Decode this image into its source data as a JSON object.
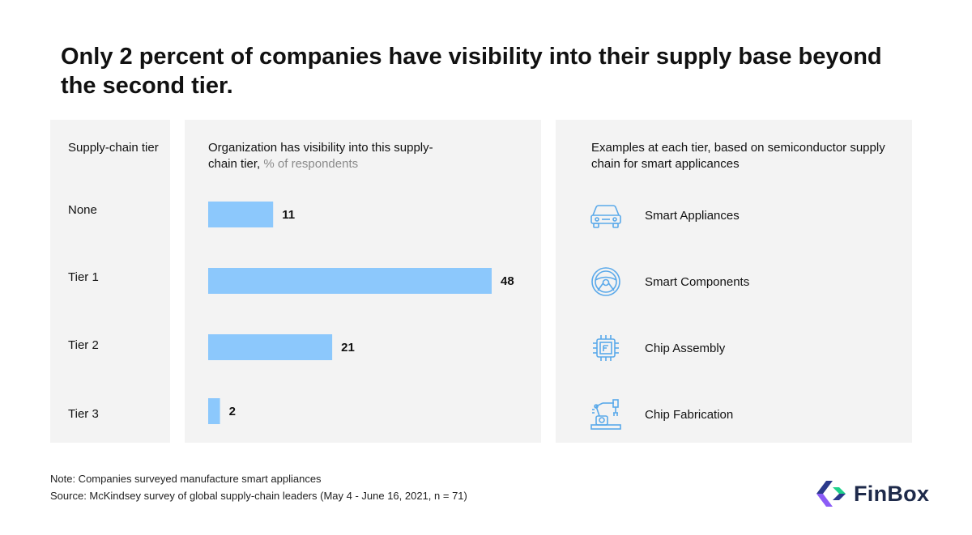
{
  "title": "Only 2 percent of companies have visibility into their supply base beyond the second tier.",
  "columns": {
    "tier_heading": "Supply-chain tier",
    "chart_heading_main": "Organization has visibility into this supply-chain tier,",
    "chart_heading_muted": "% of respondents",
    "examples_heading": "Examples at each tier, based on semiconductor supply chain for smart applicances"
  },
  "chart_data": {
    "type": "bar",
    "orientation": "horizontal",
    "title": "Organization has visibility into this supply-chain tier, % of respondents",
    "categories": [
      "None",
      "Tier 1",
      "Tier 2",
      "Tier 3"
    ],
    "values": [
      11,
      48,
      21,
      2
    ],
    "xlim": [
      0,
      48
    ],
    "unit": "% of respondents",
    "bar_color": "#8cc8fc"
  },
  "examples": [
    {
      "label": "Smart Appliances",
      "icon": "car-icon"
    },
    {
      "label": "Smart Components",
      "icon": "steering-wheel-icon"
    },
    {
      "label": "Chip Assembly",
      "icon": "chip-icon"
    },
    {
      "label": "Chip Fabrication",
      "icon": "robot-arm-icon"
    }
  ],
  "footer": {
    "note": "Note: Companies surveyed manufacture smart appliances",
    "source": "Source: McKindsey survey of global supply-chain leaders (May 4 - June 16, 2021, n = 71)"
  },
  "brand": {
    "name": "FinBox",
    "colors": {
      "accent_dark": "#2b3a8c",
      "accent_purple": "#8b5cf6",
      "accent_green": "#1fd18b"
    }
  }
}
